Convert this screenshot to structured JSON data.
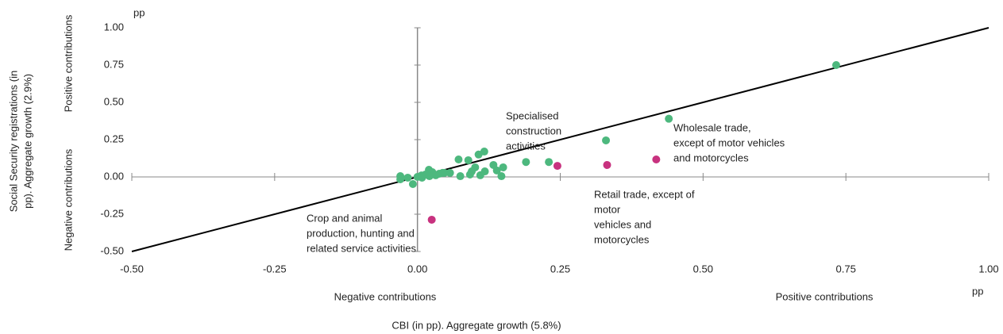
{
  "chart_data": {
    "type": "scatter",
    "xlabel": "CBI (in pp). Aggregate growth (5.8%)",
    "ylabel": [
      "Social Security registrations (in",
      "pp). Aggregate growth (2.9%)"
    ],
    "x_unit": "pp",
    "y_unit": "pp",
    "x_side_labels": [
      "Negative contributions",
      "Positive contributions"
    ],
    "y_side_labels": [
      "Positive contributions",
      "Negative contributions"
    ],
    "xlim": [
      -0.5,
      1
    ],
    "ylim": [
      -0.5,
      1
    ],
    "xticks": [
      {
        "value": -0.5,
        "label": "-0.50"
      },
      -0.25,
      {
        "value": 0,
        "label": "0.00"
      },
      0.25,
      {
        "value": 0.5,
        "label": "0.50"
      },
      0.75,
      {
        "value": 1,
        "label": "1.00"
      }
    ],
    "yticks": [
      {
        "value": -0.5,
        "label": "-0.50"
      },
      -0.25,
      {
        "value": 0,
        "label": "0.00"
      },
      0.25,
      {
        "value": 0.5,
        "label": "0.50"
      },
      0.75,
      {
        "value": 1,
        "label": "1.00"
      }
    ],
    "reference_line": {
      "x": [
        -0.5,
        1
      ],
      "y": [
        -0.5,
        1
      ],
      "color": "#000000"
    },
    "series": [
      {
        "color": "#4db87e",
        "x": [
          0.733,
          0.44,
          0.33,
          0.23,
          0.19,
          0.117,
          0.107,
          0.072,
          0.089,
          0.133,
          0.15,
          0.139,
          0.118,
          0.101,
          0.095,
          0.11,
          0.147,
          0.075,
          0.092,
          0.057,
          0.047,
          -0.03,
          -0.03,
          -0.017,
          -0.008,
          0,
          0.007,
          0.014,
          0.02,
          0.026,
          0.032,
          0.038,
          0.044,
          0.021,
          0.008
        ],
        "values": [
          0.75,
          0.39,
          0.245,
          0.1,
          0.1,
          0.17,
          0.15,
          0.117,
          0.112,
          0.08,
          0.064,
          0.043,
          0.037,
          0.064,
          0.037,
          0.011,
          0.005,
          0.005,
          0.016,
          0.027,
          0.027,
          0.005,
          -0.016,
          -0.005,
          -0.048,
          0,
          0.01,
          0.016,
          0.048,
          0.032,
          0.011,
          0.021,
          0.027,
          0.005,
          -0.005
        ]
      },
      {
        "color": "#c8327f",
        "x": [
          0.025,
          0.245,
          0.332,
          0.418
        ],
        "values": [
          -0.287,
          0.074,
          0.08,
          0.117
        ]
      }
    ],
    "annotations": [
      [
        "Specialised",
        "construction",
        "activities"
      ],
      [
        "Wholesale trade,",
        "except of motor vehicles",
        "and motorcycles"
      ],
      [
        "Retail trade, except of",
        "motor",
        "vehicles and",
        "motorcycles"
      ],
      [
        "Crop and animal",
        "production, hunting and",
        "related service activities"
      ]
    ]
  }
}
